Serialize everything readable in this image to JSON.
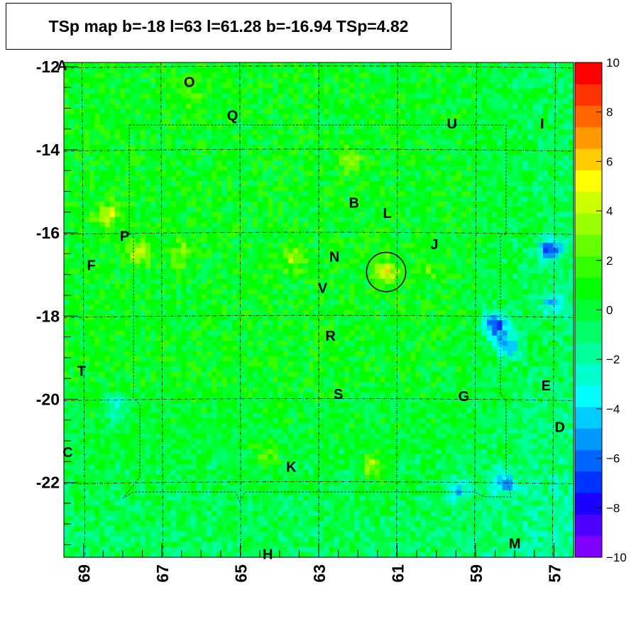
{
  "title": "TSp map b=-18 l=63 l=61.28 b=-16.94 TSp=4.82",
  "chart_data": {
    "type": "heatmap",
    "title": "TSp map b=-18 l=63 l=61.28 b=-16.94 TSp=4.82",
    "xlim": [
      69.5,
      56.5
    ],
    "ylim": [
      -23.8,
      -11.9
    ],
    "x_ticks": [
      "69",
      "67",
      "65",
      "63",
      "61",
      "59",
      "57"
    ],
    "y_ticks": [
      "-12",
      "-14",
      "-16",
      "-18",
      "-20",
      "-22"
    ],
    "colorbar": {
      "range": [
        -10,
        10
      ],
      "ticks": [
        "10",
        "8",
        "6",
        "4",
        "2",
        "0",
        "−2",
        "−4",
        "−6",
        "−8",
        "−10"
      ],
      "colors": [
        "#7f00ff",
        "#4c00ff",
        "#1a00ff",
        "#0033ff",
        "#0066ff",
        "#0099ff",
        "#00ccff",
        "#00ffff",
        "#00ffcc",
        "#00ff99",
        "#00ff66",
        "#00ff33",
        "#00ff00",
        "#33ff00",
        "#66ff00",
        "#99ff00",
        "#ccff00",
        "#ffff00",
        "#ffcc00",
        "#ff9900",
        "#ff6600",
        "#ff3300",
        "#ff0000"
      ]
    },
    "background_value": 0.5,
    "hotspots": [
      {
        "l": 61.28,
        "b": -16.94,
        "value": 4.8
      },
      {
        "l": 68.4,
        "b": -15.6,
        "value": 4.5
      },
      {
        "l": 67.6,
        "b": -16.5,
        "value": 4.0
      },
      {
        "l": 63.6,
        "b": -16.6,
        "value": 3.5
      },
      {
        "l": 61.6,
        "b": -21.6,
        "value": 4.0
      },
      {
        "l": 62.2,
        "b": -14.2,
        "value": 3.0
      },
      {
        "l": 66.3,
        "b": -12.6,
        "value": 2.5
      },
      {
        "l": 66.5,
        "b": -16.5,
        "value": 3.0
      },
      {
        "l": 64.3,
        "b": -21.4,
        "value": 2.5
      },
      {
        "l": 60.2,
        "b": -16.9,
        "value": 2.0
      }
    ],
    "coldspots": [
      {
        "l": 58.5,
        "b": -18.2,
        "value": -6.5
      },
      {
        "l": 57.1,
        "b": -16.4,
        "value": -5.5
      },
      {
        "l": 57.0,
        "b": -17.7,
        "value": -3.5
      },
      {
        "l": 58.2,
        "b": -18.7,
        "value": -4.5
      },
      {
        "l": 58.3,
        "b": -22.0,
        "value": -4.0
      },
      {
        "l": 59.5,
        "b": -22.2,
        "value": -3.0
      },
      {
        "l": 68.2,
        "b": -20.2,
        "value": -2.5
      }
    ],
    "source_circle": {
      "l": 61.28,
      "b": -16.94,
      "radius_deg": 0.5
    },
    "source_labels": [
      {
        "text": "A",
        "l": 69.55,
        "b": -12.0
      },
      {
        "text": "O",
        "l": 66.3,
        "b": -12.4
      },
      {
        "text": "Q",
        "l": 65.2,
        "b": -13.2
      },
      {
        "text": "U",
        "l": 59.6,
        "b": -13.4
      },
      {
        "text": "I",
        "l": 57.3,
        "b": -13.4
      },
      {
        "text": "B",
        "l": 62.1,
        "b": -15.3
      },
      {
        "text": "L",
        "l": 61.25,
        "b": -15.55
      },
      {
        "text": "P",
        "l": 67.95,
        "b": -16.1
      },
      {
        "text": "J",
        "l": 60.05,
        "b": -16.3
      },
      {
        "text": "N",
        "l": 62.6,
        "b": -16.6
      },
      {
        "text": "F",
        "l": 68.8,
        "b": -16.8
      },
      {
        "text": "V",
        "l": 62.9,
        "b": -17.35
      },
      {
        "text": "R",
        "l": 62.7,
        "b": -18.5
      },
      {
        "text": "T",
        "l": 69.05,
        "b": -19.35
      },
      {
        "text": "S",
        "l": 62.5,
        "b": -19.9
      },
      {
        "text": "G",
        "l": 59.3,
        "b": -19.95
      },
      {
        "text": "E",
        "l": 57.2,
        "b": -19.7
      },
      {
        "text": "D",
        "l": 56.85,
        "b": -20.7
      },
      {
        "text": "C",
        "l": 69.4,
        "b": -21.3
      },
      {
        "text": "K",
        "l": 63.7,
        "b": -21.65
      },
      {
        "text": "M",
        "l": 58.0,
        "b": -23.5
      },
      {
        "text": "H",
        "l": 64.3,
        "b": -23.75
      }
    ]
  }
}
